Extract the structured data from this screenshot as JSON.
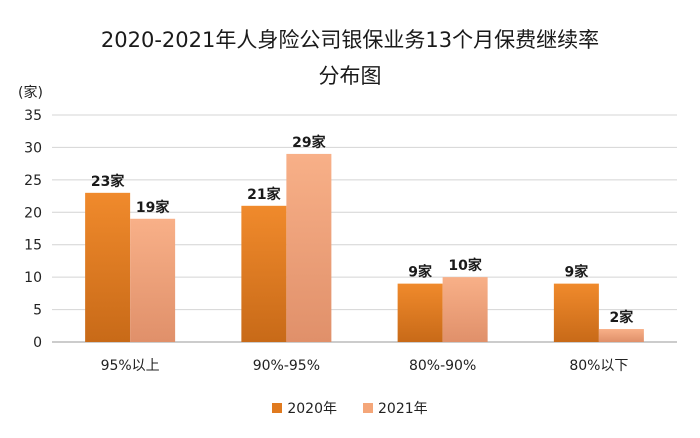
{
  "chart_data": {
    "type": "bar",
    "title": "2020-2021年人身险公司银保业务13个月保费继续率",
    "subtitle": "分布图",
    "ylabel": "(家)",
    "xlabel": "",
    "ylim": [
      0,
      35
    ],
    "yticks": [
      0,
      5,
      10,
      15,
      20,
      25,
      30,
      35
    ],
    "grid": true,
    "legend_position": "bottom",
    "categories": [
      "95%以上",
      "90%-95%",
      "80%-90%",
      "80%以下"
    ],
    "series": [
      {
        "name": "2020年",
        "values": [
          23,
          21,
          9,
          9
        ],
        "labels": [
          "23家",
          "21家",
          "9家",
          "9家"
        ],
        "color": "#E07A1F"
      },
      {
        "name": "2021年",
        "values": [
          19,
          29,
          10,
          2
        ],
        "labels": [
          "19家",
          "29家",
          "10家",
          "2家"
        ],
        "color": "#F4A679"
      }
    ]
  }
}
